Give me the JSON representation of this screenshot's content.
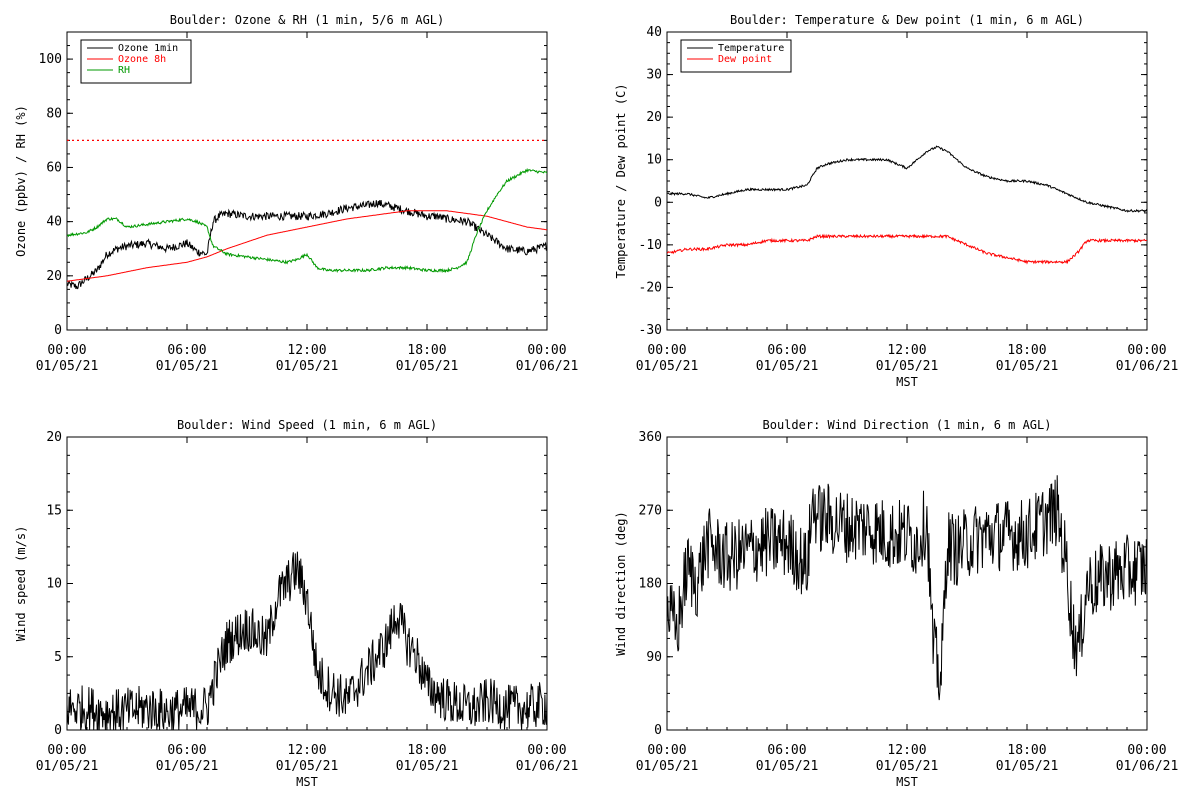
{
  "chart_data": [
    {
      "type": "line",
      "title": "Boulder: Ozone & RH (1 min, 5/6 m AGL)",
      "ylabel": "Ozone (ppbv) / RH (%)",
      "xlabel": "",
      "ylim": [
        0,
        110
      ],
      "yticks": [
        0,
        20,
        40,
        60,
        80,
        100
      ],
      "xlim": [
        0,
        24
      ],
      "xticks": [
        {
          "l1": "00:00",
          "l2": "01/05/21"
        },
        {
          "l1": "06:00",
          "l2": "01/05/21"
        },
        {
          "l1": "12:00",
          "l2": "01/05/21"
        },
        {
          "l1": "18:00",
          "l2": "01/05/21"
        },
        {
          "l1": "00:00",
          "l2": "01/06/21"
        }
      ],
      "legend_position": "top-left",
      "reference_lines": [
        {
          "y": 70,
          "color": "#ff0000",
          "style": "dotted"
        }
      ],
      "series": [
        {
          "name": "Ozone 1min",
          "color": "#000000",
          "noise": 1.5,
          "x": [
            0,
            0.5,
            1,
            1.5,
            2,
            2.5,
            3,
            4,
            5,
            6,
            6.5,
            7,
            7.3,
            7.6,
            8,
            9,
            10,
            11,
            12,
            13,
            14,
            15,
            15.5,
            16,
            17,
            18,
            18.5,
            19,
            20,
            21,
            22,
            23,
            24
          ],
          "y": [
            17,
            16,
            19,
            22,
            28,
            30,
            31,
            32,
            30,
            32,
            29,
            28,
            40,
            42,
            43,
            42,
            42,
            42,
            42,
            43,
            45,
            46,
            47,
            46,
            44,
            42,
            42,
            41,
            40,
            35,
            30,
            29,
            31
          ]
        },
        {
          "name": "Ozone 8h",
          "color": "#ff0000",
          "noise": 0,
          "x": [
            0,
            2,
            4,
            6,
            7,
            8,
            10,
            12,
            14,
            16,
            17,
            18,
            19,
            20,
            21,
            22,
            23,
            24
          ],
          "y": [
            18,
            20,
            23,
            25,
            27,
            30,
            35,
            38,
            41,
            43,
            44,
            44,
            44,
            43,
            42,
            40,
            38,
            37
          ]
        },
        {
          "name": "RH",
          "color": "#009900",
          "noise": 0.5,
          "x": [
            0,
            1,
            1.5,
            2,
            2.5,
            3,
            4,
            5,
            6,
            6.5,
            7,
            7.3,
            8,
            9,
            10,
            11,
            11.5,
            12,
            12.5,
            13,
            14,
            15,
            16,
            17,
            18,
            19,
            19.5,
            20,
            20.5,
            21,
            21.5,
            22,
            23,
            24
          ],
          "y": [
            35,
            36,
            38,
            41,
            41,
            38,
            39,
            40,
            41,
            40,
            38,
            31,
            28,
            27,
            26,
            25,
            26,
            28,
            23,
            22,
            22,
            22,
            23,
            23,
            22,
            22,
            23,
            25,
            36,
            44,
            50,
            55,
            59,
            58
          ]
        }
      ]
    },
    {
      "type": "line",
      "title": "Boulder: Temperature & Dew point (1 min, 6 m AGL)",
      "ylabel": "Temperature / Dew point (C)",
      "xlabel": "MST",
      "ylim": [
        -30,
        40
      ],
      "yticks": [
        -30,
        -20,
        -10,
        0,
        10,
        20,
        30,
        40
      ],
      "xlim": [
        0,
        24
      ],
      "xticks": [
        {
          "l1": "00:00",
          "l2": "01/05/21"
        },
        {
          "l1": "06:00",
          "l2": "01/05/21"
        },
        {
          "l1": "12:00",
          "l2": "01/05/21"
        },
        {
          "l1": "18:00",
          "l2": "01/05/21"
        },
        {
          "l1": "00:00",
          "l2": "01/06/21"
        }
      ],
      "legend_position": "top-left",
      "reference_lines": [],
      "series": [
        {
          "name": "Temperature",
          "color": "#000000",
          "noise": 0.25,
          "x": [
            0,
            1,
            2,
            3,
            4,
            5,
            6,
            7,
            7.5,
            8,
            9,
            10,
            11,
            12,
            12.5,
            13,
            13.5,
            14,
            14.5,
            15,
            16,
            17,
            18,
            19,
            20,
            21,
            22,
            23,
            24
          ],
          "y": [
            2,
            2,
            1,
            2,
            3,
            3,
            3,
            4,
            8,
            9,
            10,
            10,
            10,
            8,
            10,
            12,
            13,
            12,
            10,
            8,
            6,
            5,
            5,
            4,
            2,
            0,
            -1,
            -2,
            -2
          ]
        },
        {
          "name": "Dew point",
          "color": "#ff0000",
          "noise": 0.3,
          "x": [
            0,
            1,
            2,
            3,
            4,
            5,
            6,
            7,
            7.5,
            8,
            9,
            10,
            11,
            12,
            13,
            14,
            15,
            16,
            17,
            18,
            19,
            20,
            20.5,
            21,
            22,
            23,
            24
          ],
          "y": [
            -12,
            -11,
            -11,
            -10,
            -10,
            -9,
            -9,
            -9,
            -8,
            -8,
            -8,
            -8,
            -8,
            -8,
            -8,
            -8,
            -10,
            -12,
            -13,
            -14,
            -14,
            -14,
            -12,
            -9,
            -9,
            -9,
            -9
          ]
        }
      ]
    },
    {
      "type": "line",
      "title": "Boulder: Wind Speed (1 min, 6 m AGL)",
      "ylabel": "Wind speed (m/s)",
      "xlabel": "MST",
      "ylim": [
        0,
        20
      ],
      "yticks": [
        0,
        5,
        10,
        15,
        20
      ],
      "xlim": [
        0,
        24
      ],
      "xticks": [
        {
          "l1": "00:00",
          "l2": "01/05/21"
        },
        {
          "l1": "06:00",
          "l2": "01/05/21"
        },
        {
          "l1": "12:00",
          "l2": "01/05/21"
        },
        {
          "l1": "18:00",
          "l2": "01/05/21"
        },
        {
          "l1": "00:00",
          "l2": "01/06/21"
        }
      ],
      "legend_position": "",
      "reference_lines": [],
      "series": [
        {
          "name": "",
          "color": "#000000",
          "noise": 1.6,
          "x": [
            0,
            1,
            2,
            3,
            4,
            5,
            6,
            7,
            7.5,
            8,
            9,
            10,
            10.5,
            11,
            11.5,
            12,
            12.5,
            13,
            14,
            14.5,
            15,
            16,
            16.5,
            17,
            17.5,
            18,
            19,
            20,
            20.5,
            21,
            22,
            23,
            24
          ],
          "y": [
            1.5,
            1.5,
            1.2,
            1.3,
            1.5,
            1.2,
            1.4,
            1.5,
            4,
            6,
            7,
            6,
            9,
            10,
            11,
            9,
            4,
            3,
            2,
            3,
            4,
            6,
            8,
            6,
            5,
            3,
            2,
            1.5,
            1.5,
            2,
            1.5,
            1.5,
            1.8
          ]
        }
      ]
    },
    {
      "type": "line",
      "title": "Boulder: Wind Direction (1 min, 6 m AGL)",
      "ylabel": "Wind direction (deg)",
      "xlabel": "MST",
      "ylim": [
        0,
        360
      ],
      "yticks": [
        0,
        90,
        180,
        270,
        360
      ],
      "xlim": [
        0,
        24
      ],
      "xticks": [
        {
          "l1": "00:00",
          "l2": "01/05/21"
        },
        {
          "l1": "06:00",
          "l2": "01/05/21"
        },
        {
          "l1": "12:00",
          "l2": "01/05/21"
        },
        {
          "l1": "18:00",
          "l2": "01/05/21"
        },
        {
          "l1": "00:00",
          "l2": "01/06/21"
        }
      ],
      "legend_position": "",
      "reference_lines": [],
      "series": [
        {
          "name": "",
          "color": "#000000",
          "noise": 45,
          "x": [
            0,
            0.5,
            1,
            1.5,
            2,
            3,
            4,
            5,
            6,
            7,
            7.3,
            7.6,
            8,
            9,
            10,
            11,
            12,
            12.5,
            13,
            13.3,
            13.7,
            14,
            14.5,
            15,
            16,
            17,
            18,
            18.5,
            19,
            19.5,
            20,
            20.3,
            20.6,
            21,
            21.5,
            22,
            23,
            24
          ],
          "y": [
            150,
            120,
            200,
            180,
            230,
            210,
            220,
            230,
            230,
            200,
            280,
            260,
            260,
            250,
            250,
            240,
            240,
            230,
            260,
            100,
            60,
            230,
            220,
            230,
            240,
            240,
            240,
            250,
            260,
            270,
            200,
            120,
            100,
            180,
            180,
            190,
            195,
            200
          ]
        }
      ]
    }
  ]
}
